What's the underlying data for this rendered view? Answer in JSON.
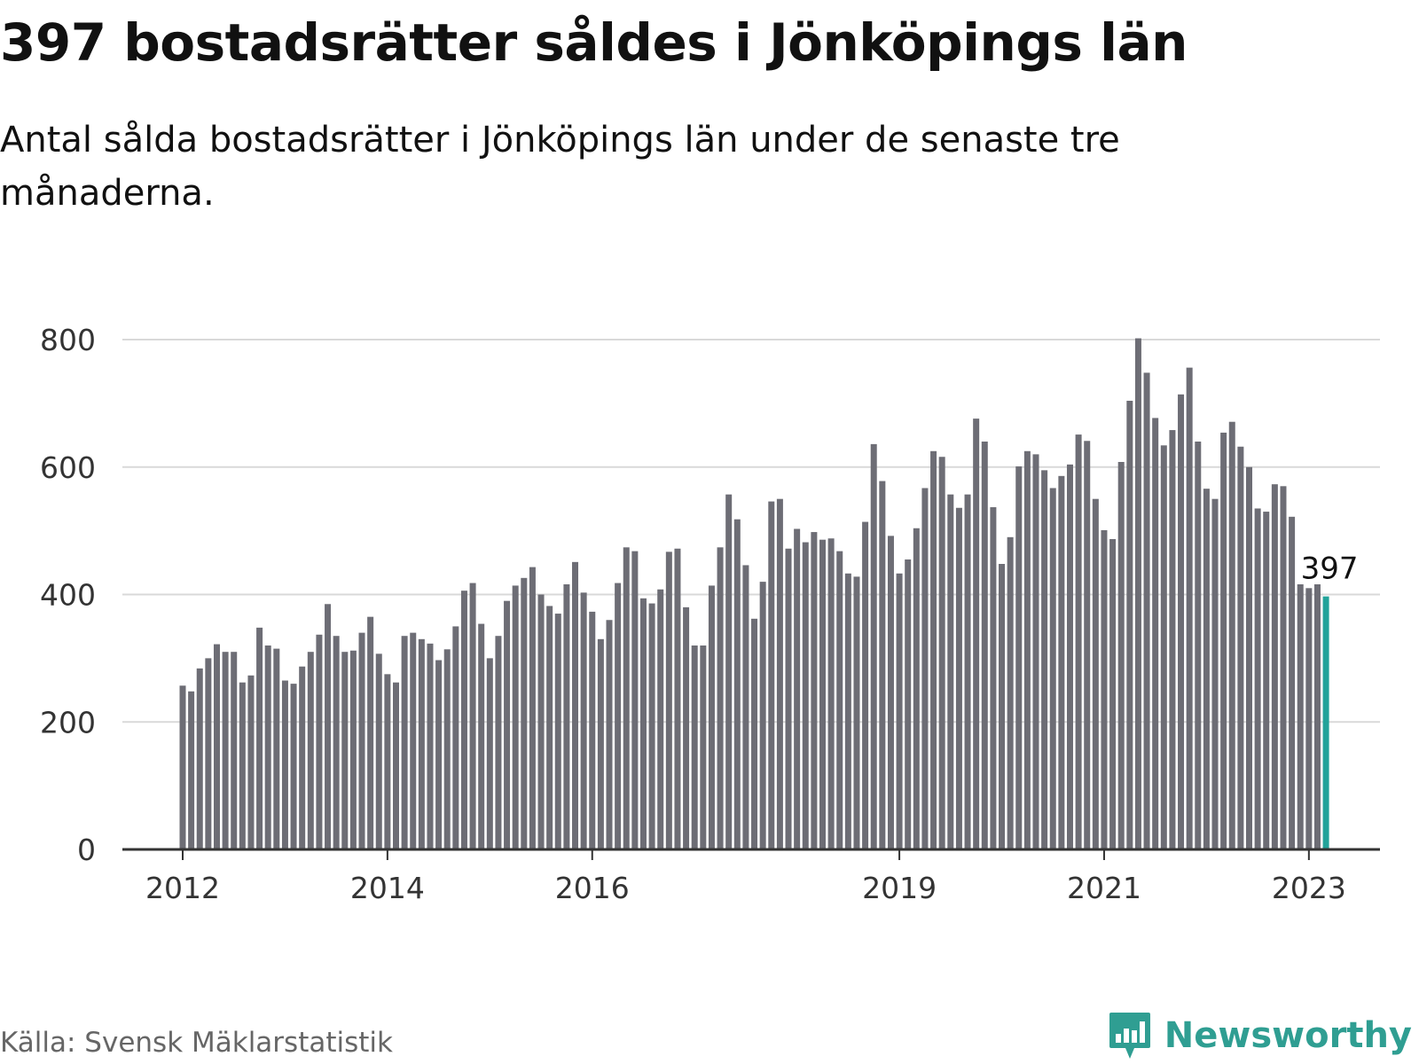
{
  "header": {
    "title": "397 bostadsrätter såldes i Jönköpings län",
    "subtitle": "Antal sålda bostadsrätter i Jönköpings län under de senaste tre månaderna."
  },
  "footer": {
    "source": "Källa: Svensk Mäklarstatistik",
    "brand": "Newsworthy"
  },
  "colors": {
    "bar": "#6d6d75",
    "highlight": "#22a39a",
    "grid": "#d9d9d9",
    "axis": "#333333",
    "brand": "#2f9e92"
  },
  "chart_data": {
    "type": "bar",
    "title": "397 bostadsrätter såldes i Jönköpings län",
    "xlabel": "",
    "ylabel": "",
    "ylim": [
      0,
      800
    ],
    "yticks": [
      0,
      200,
      400,
      600,
      800
    ],
    "grid": true,
    "first_month": "2012-01",
    "xtick_labels": [
      {
        "label": "2012",
        "index": 0
      },
      {
        "label": "2014",
        "index": 24
      },
      {
        "label": "2016",
        "index": 48
      },
      {
        "label": "2019",
        "index": 84
      },
      {
        "label": "2021",
        "index": 108
      },
      {
        "label": "2023",
        "index": 132
      }
    ],
    "values": [
      257,
      248,
      284,
      300,
      322,
      310,
      310,
      262,
      273,
      348,
      320,
      315,
      265,
      260,
      287,
      310,
      337,
      385,
      335,
      310,
      312,
      340,
      365,
      307,
      275,
      262,
      335,
      340,
      330,
      323,
      297,
      314,
      350,
      406,
      418,
      354,
      300,
      335,
      390,
      414,
      426,
      443,
      400,
      382,
      370,
      416,
      451,
      403,
      373,
      330,
      360,
      418,
      474,
      468,
      394,
      386,
      408,
      467,
      472,
      380,
      320,
      320,
      414,
      474,
      557,
      518,
      446,
      362,
      420,
      546,
      550,
      472,
      503,
      482,
      498,
      486,
      488,
      468,
      433,
      428,
      514,
      636,
      578,
      492,
      433,
      455,
      504,
      567,
      625,
      616,
      557,
      536,
      557,
      676,
      640,
      537,
      448,
      490,
      601,
      625,
      620,
      595,
      567,
      586,
      604,
      651,
      641,
      550,
      501,
      487,
      608,
      704,
      802,
      748,
      677,
      634,
      658,
      714,
      756,
      640,
      566,
      550,
      654,
      671,
      632,
      600,
      535,
      530,
      573,
      570,
      522,
      416,
      410,
      416,
      397
    ],
    "highlight_index": 134,
    "highlight_label": "397"
  }
}
